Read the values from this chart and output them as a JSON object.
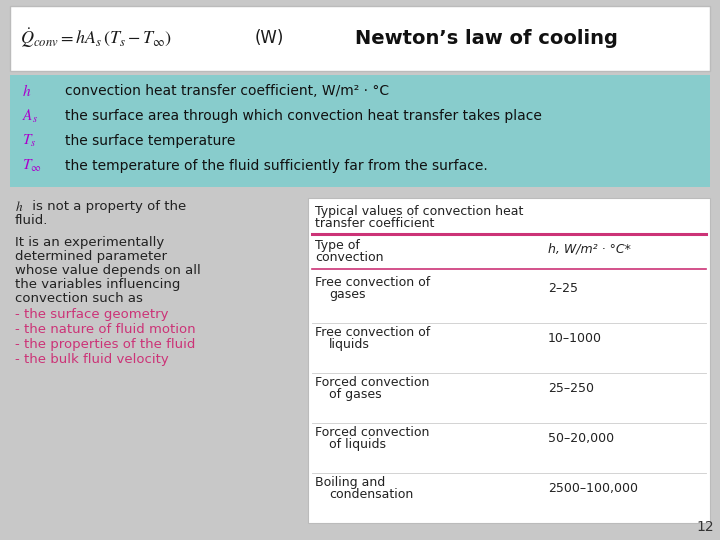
{
  "bg_color": "#c8c8c8",
  "title": "Newton’s law of cooling",
  "formula_box_bg": "#ffffff",
  "variables_box_bg": "#88cccc",
  "var_sym_display": [
    "$h$",
    "$A_s$",
    "$T_s$",
    "$T_\\infty$"
  ],
  "var_descs": [
    "convection heat transfer coefficient, W/m² · °C",
    "the surface area through which convection heat transfer takes place",
    "the surface temperature",
    "the temperature of the fluid sufficiently far from the surface."
  ],
  "table_title_line1": "Typical values of convection heat",
  "table_title_line2": "transfer coefficient",
  "table_col1_header": "Type of\nconvection",
  "table_col2_header": "h, W/m² · °C*",
  "table_rows": [
    [
      "Free convection of",
      "gases",
      "2–25"
    ],
    [
      "Free convection of",
      "liquids",
      "10–1000"
    ],
    [
      "Forced convection",
      "of gases",
      "25–250"
    ],
    [
      "Forced convection",
      "of liquids",
      "50–20,000"
    ],
    [
      "Boiling and",
      "condensation",
      "2500–100,000"
    ]
  ],
  "pink_color": "#cc3377",
  "purple_color": "#aa00cc",
  "dark_text": "#222222",
  "page_number": "12",
  "formula_text": "$\\dot{Q}_{conv} = hA_s\\,(T_s - T_\\infty)$",
  "formula_unit": "(W)"
}
